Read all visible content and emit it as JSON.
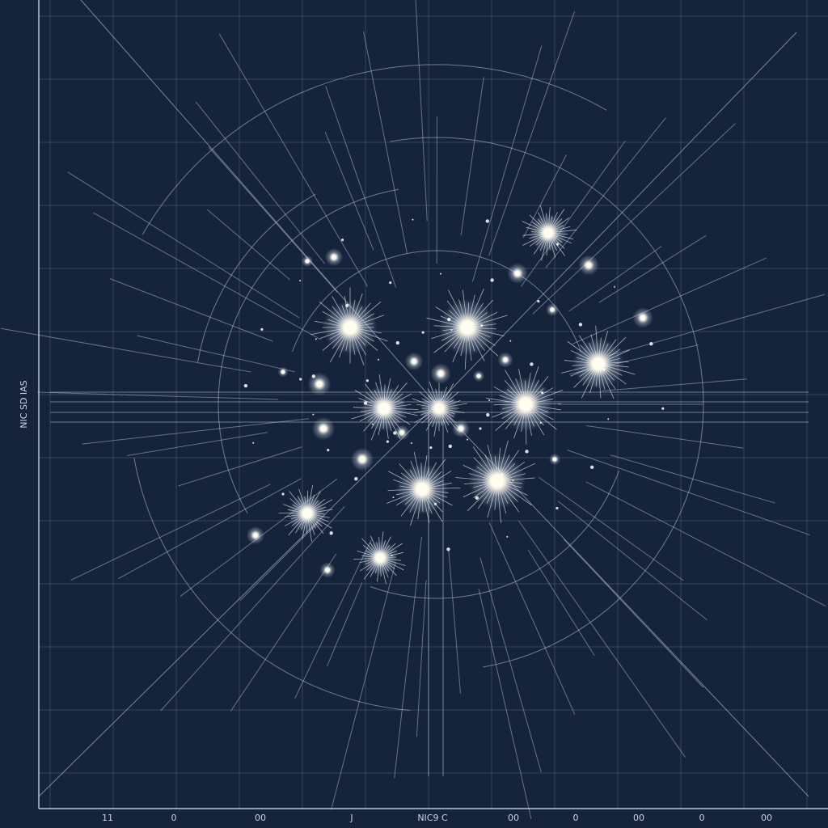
{
  "y_label": "NIC SD IAS",
  "x_labels": [
    "11",
    "0",
    "00",
    "J",
    "NIC9 C",
    "00",
    "0",
    "00",
    "0",
    "00"
  ]
}
